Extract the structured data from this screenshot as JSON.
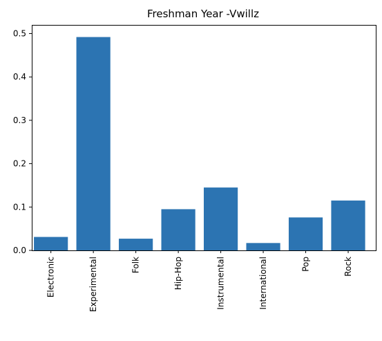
{
  "chart_data": {
    "type": "bar",
    "title": "Freshman Year -Vwillz",
    "xlabel": "",
    "ylabel": "",
    "categories": [
      "Electronic",
      "Experimental",
      "Folk",
      "Hip-Hop",
      "Instrumental",
      "International",
      "Pop",
      "Rock"
    ],
    "values": [
      0.031,
      0.492,
      0.027,
      0.095,
      0.145,
      0.017,
      0.076,
      0.115
    ],
    "ylim": [
      0,
      0.52
    ],
    "yticks": [
      0.0,
      0.1,
      0.2,
      0.3,
      0.4,
      0.5
    ],
    "ytick_labels": [
      "0.0",
      "0.1",
      "0.2",
      "0.3",
      "0.4",
      "0.5"
    ],
    "bar_color": "#2c74b2",
    "grid": false,
    "legend": "none"
  }
}
